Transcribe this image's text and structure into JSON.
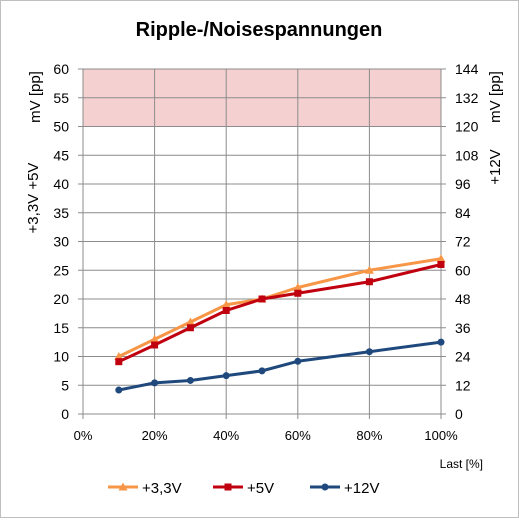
{
  "chart_data": {
    "type": "line",
    "title": "Ripple-/Noisespannungen",
    "xlabel": "Last [%]",
    "ylabel_left": [
      "mV [pp]",
      "+3,3V +5V"
    ],
    "ylabel_right": [
      "mV [pp]",
      "+12V"
    ],
    "xlim": [
      0,
      1
    ],
    "ylim_left": [
      0,
      60
    ],
    "ylim_right": [
      0,
      144
    ],
    "x_ticks": [
      0,
      0.2,
      0.4,
      0.6,
      0.8,
      1.0
    ],
    "x_tick_labels": [
      "0%",
      "20%",
      "40%",
      "60%",
      "80%",
      "100%"
    ],
    "y_left_ticks": [
      "0",
      "5",
      "10",
      "15",
      "20",
      "25",
      "30",
      "35",
      "40",
      "45",
      "50",
      "55",
      "60"
    ],
    "y_right_ticks": [
      "0",
      "12",
      "24",
      "36",
      "48",
      "60",
      "72",
      "84",
      "96",
      "108",
      "120",
      "132",
      "144"
    ],
    "limit_band": {
      "from": 50,
      "to": 60,
      "color": "#f4d0d0"
    },
    "grid": true,
    "legend_position": "bottom",
    "x": [
      0.1,
      0.2,
      0.3,
      0.4,
      0.5,
      0.6,
      0.8,
      1.0
    ],
    "series": [
      {
        "name": "+3,3V",
        "axis": "left",
        "color": "#f79646",
        "marker": "triangle",
        "values": [
          10.0,
          13.0,
          16.0,
          19.0,
          20.0,
          22.0,
          25.0,
          27.0
        ]
      },
      {
        "name": "+5V",
        "axis": "left",
        "color": "#c0000f",
        "marker": "square",
        "values": [
          9.1,
          12.0,
          15.0,
          18.0,
          20.0,
          21.0,
          23.0,
          26.0
        ]
      },
      {
        "name": "+12V",
        "axis": "right",
        "color": "#1f497d",
        "marker": "circle",
        "values": [
          10,
          13,
          14,
          16,
          18,
          22,
          26,
          30
        ]
      }
    ]
  }
}
